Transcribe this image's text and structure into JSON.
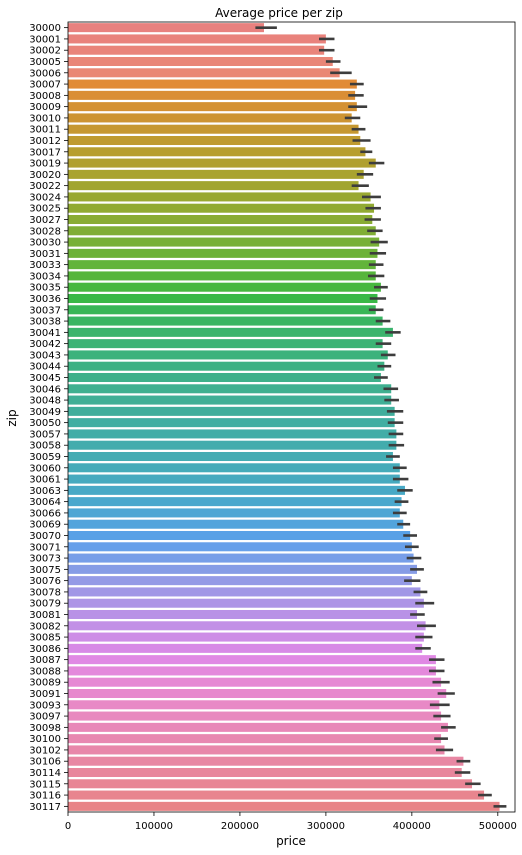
{
  "chart_data": {
    "type": "bar",
    "orientation": "horizontal",
    "title": "Average price per zip",
    "xlabel": "price",
    "ylabel": "zip",
    "xlim": [
      0,
      520000
    ],
    "x_ticks": [
      0,
      100000,
      200000,
      300000,
      400000,
      500000
    ],
    "x_tick_labels": [
      "0",
      "100000",
      "200000",
      "300000",
      "400000",
      "500000"
    ],
    "grid": false,
    "categories": [
      "30000",
      "30001",
      "30002",
      "30005",
      "30006",
      "30007",
      "30008",
      "30009",
      "30010",
      "30011",
      "30012",
      "30017",
      "30019",
      "30020",
      "30022",
      "30024",
      "30025",
      "30027",
      "30028",
      "30030",
      "30031",
      "30033",
      "30034",
      "30035",
      "30036",
      "30037",
      "30038",
      "30041",
      "30042",
      "30043",
      "30044",
      "30045",
      "30046",
      "30048",
      "30049",
      "30050",
      "30057",
      "30058",
      "30059",
      "30060",
      "30061",
      "30063",
      "30064",
      "30066",
      "30069",
      "30070",
      "30071",
      "30073",
      "30075",
      "30076",
      "30078",
      "30079",
      "30081",
      "30082",
      "30085",
      "30086",
      "30087",
      "30088",
      "30089",
      "30091",
      "30093",
      "30097",
      "30098",
      "30100",
      "30102",
      "30106",
      "30114",
      "30115",
      "30116",
      "30117"
    ],
    "values": [
      228000,
      300000,
      298000,
      308000,
      316000,
      336000,
      334000,
      336000,
      330000,
      338000,
      340000,
      346000,
      358000,
      344000,
      338000,
      352000,
      356000,
      354000,
      358000,
      362000,
      360000,
      358000,
      358000,
      364000,
      360000,
      358000,
      366000,
      378000,
      366000,
      372000,
      368000,
      364000,
      376000,
      376000,
      380000,
      380000,
      382000,
      382000,
      378000,
      386000,
      386000,
      392000,
      388000,
      386000,
      390000,
      398000,
      400000,
      402000,
      406000,
      400000,
      410000,
      414000,
      406000,
      416000,
      414000,
      412000,
      428000,
      428000,
      434000,
      440000,
      432000,
      434000,
      442000,
      434000,
      438000,
      460000,
      458000,
      470000,
      484000,
      502000
    ],
    "ci": [
      [
        218000,
        243000
      ],
      [
        292000,
        310000
      ],
      [
        292000,
        310000
      ],
      [
        300000,
        317000
      ],
      [
        305000,
        330000
      ],
      [
        328000,
        344000
      ],
      [
        326000,
        344000
      ],
      [
        326000,
        348000
      ],
      [
        322000,
        340000
      ],
      [
        330000,
        346000
      ],
      [
        331000,
        352000
      ],
      [
        340000,
        354000
      ],
      [
        350000,
        368000
      ],
      [
        336000,
        355000
      ],
      [
        330000,
        350000
      ],
      [
        342000,
        364000
      ],
      [
        346000,
        364000
      ],
      [
        345000,
        364000
      ],
      [
        348000,
        366000
      ],
      [
        352000,
        372000
      ],
      [
        351000,
        370000
      ],
      [
        350000,
        367000
      ],
      [
        349000,
        368000
      ],
      [
        356000,
        372000
      ],
      [
        351000,
        370000
      ],
      [
        350000,
        367000
      ],
      [
        358000,
        375000
      ],
      [
        369000,
        387000
      ],
      [
        358000,
        376000
      ],
      [
        364000,
        381000
      ],
      [
        360000,
        376000
      ],
      [
        356000,
        372000
      ],
      [
        367000,
        384000
      ],
      [
        368000,
        385000
      ],
      [
        371000,
        390000
      ],
      [
        372000,
        390000
      ],
      [
        373000,
        390000
      ],
      [
        373000,
        391000
      ],
      [
        370000,
        386000
      ],
      [
        378000,
        394000
      ],
      [
        378000,
        396000
      ],
      [
        383000,
        401000
      ],
      [
        380000,
        396000
      ],
      [
        378000,
        394000
      ],
      [
        383000,
        398000
      ],
      [
        390000,
        406000
      ],
      [
        392000,
        408000
      ],
      [
        394000,
        411000
      ],
      [
        398000,
        414000
      ],
      [
        391000,
        410000
      ],
      [
        402000,
        418000
      ],
      [
        404000,
        426000
      ],
      [
        398000,
        415000
      ],
      [
        406000,
        428000
      ],
      [
        404000,
        424000
      ],
      [
        404000,
        422000
      ],
      [
        420000,
        438000
      ],
      [
        420000,
        438000
      ],
      [
        424000,
        444000
      ],
      [
        430000,
        450000
      ],
      [
        421000,
        444000
      ],
      [
        425000,
        445000
      ],
      [
        434000,
        451000
      ],
      [
        426000,
        442000
      ],
      [
        428000,
        448000
      ],
      [
        452000,
        468000
      ],
      [
        450000,
        468000
      ],
      [
        462000,
        480000
      ],
      [
        477000,
        493000
      ],
      [
        495000,
        510000
      ]
    ],
    "colors": [
      "#e8817f",
      "#e9827c",
      "#e9847a",
      "#e98677",
      "#e98874",
      "#e18b37",
      "#da8e35",
      "#d49133",
      "#cd9432",
      "#c69831",
      "#bf9b30",
      "#b79e2f",
      "#b0a02f",
      "#a9a32f",
      "#a1a530",
      "#99a831",
      "#91aa32",
      "#89ac33",
      "#80ae35",
      "#77b036",
      "#6db238",
      "#62b43a",
      "#56b53c",
      "#47b73f",
      "#3ab847",
      "#39b657",
      "#3ab563",
      "#3bb46d",
      "#3cb375",
      "#3db27c",
      "#3db183",
      "#3eb08a",
      "#3fb090",
      "#40af96",
      "#40ae9c",
      "#41aea2",
      "#42ada7",
      "#43acad",
      "#44acb3",
      "#45abb9",
      "#46aabf",
      "#48a9c6",
      "#4aa8cd",
      "#4da6d4",
      "#52a4dc",
      "#59a1e6",
      "#67a0ea",
      "#779ee8",
      "#869ce6",
      "#949ae6",
      "#a197e6",
      "#ad95e6",
      "#b892e6",
      "#c290e6",
      "#cd8de6",
      "#d78ae6",
      "#e089e4",
      "#e489dc",
      "#e689d4",
      "#e789cd",
      "#e889c6",
      "#e889bf",
      "#e888b8",
      "#e888b1",
      "#e887aa",
      "#e887a3",
      "#e8869c",
      "#e88595",
      "#e8858e",
      "#e88487"
    ]
  }
}
